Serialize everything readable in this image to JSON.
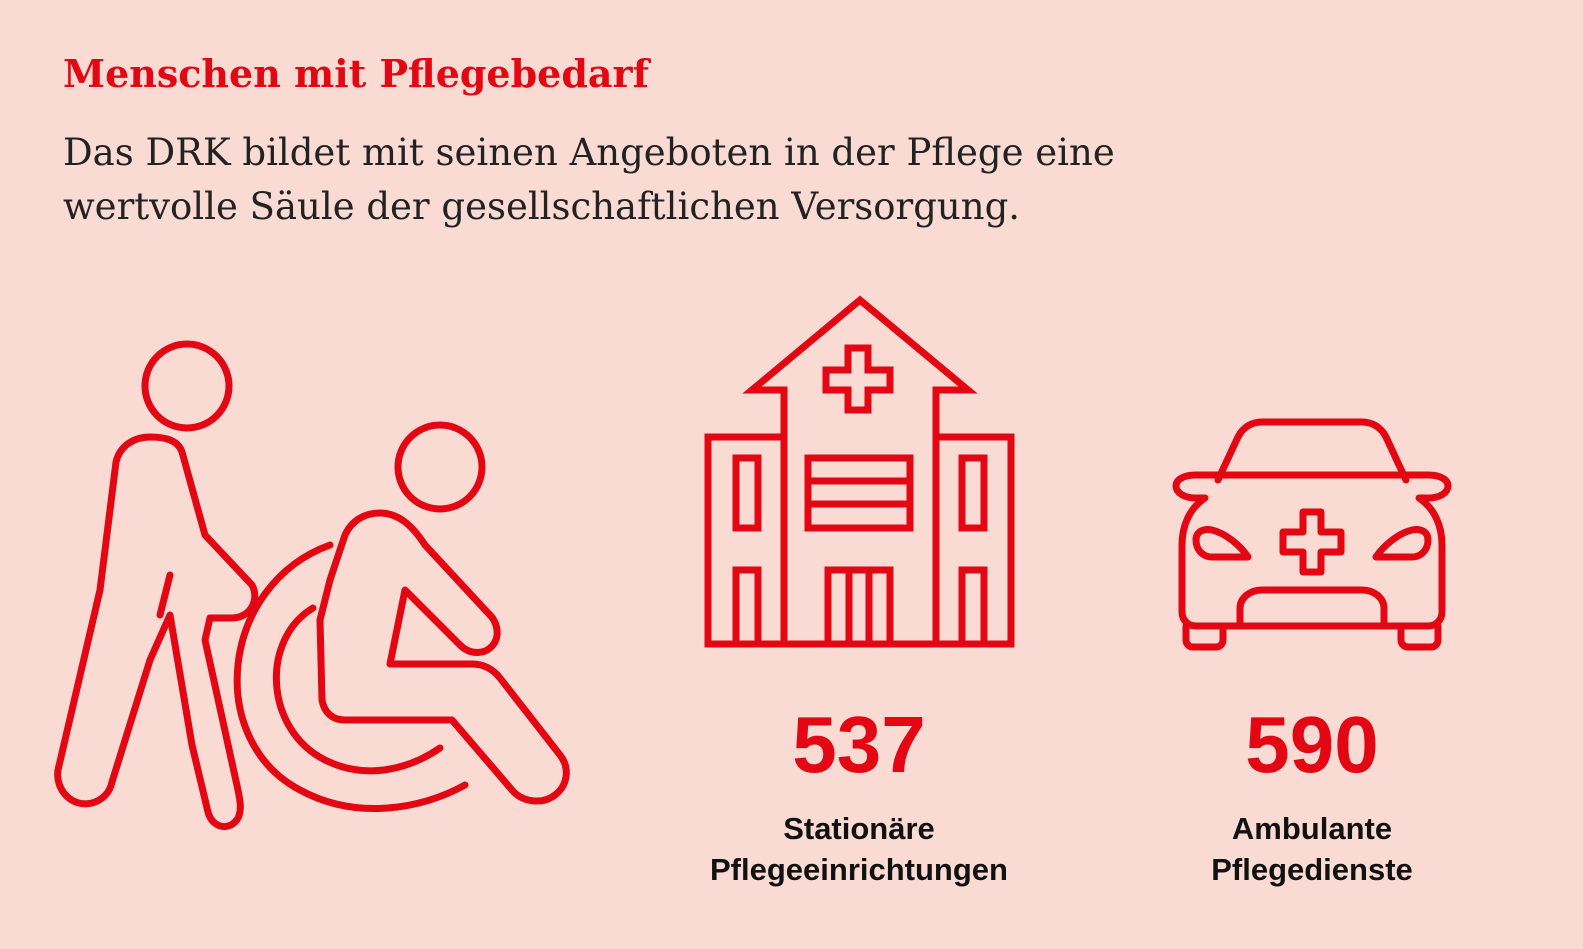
{
  "colors": {
    "background": "#f9dbd4",
    "accent": "#e30613",
    "text": "#222222"
  },
  "header": {
    "title": "Menschen mit Pflegebedarf",
    "subtitle_line1": "Das DRK bildet mit seinen Angeboten in der Pflege eine",
    "subtitle_line2": "wertvolle Säule der gesellschaftlichen Versorgung."
  },
  "icons": {
    "care": "caregiver-wheelchair-icon",
    "facility": "hospital-building-icon",
    "ambulance": "ambulance-car-icon"
  },
  "stats": [
    {
      "value": "537",
      "label_line1": "Stationäre",
      "label_line2": "Pflegeeinrichtungen"
    },
    {
      "value": "590",
      "label_line1": "Ambulante",
      "label_line2": "Pflegedienste"
    }
  ]
}
